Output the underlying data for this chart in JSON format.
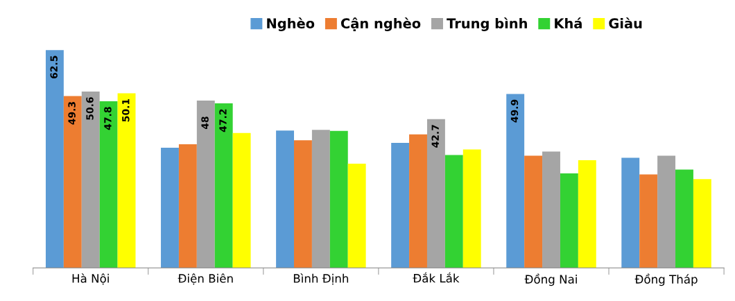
{
  "chart_data": {
    "type": "bar",
    "categories": [
      "Hà Nội",
      "Điện Biên",
      "Bình Định",
      "Đắk Lắk",
      "Đồng Nai",
      "Đồng Tháp"
    ],
    "series": [
      {
        "name": "Nghèo",
        "color": "#5b9bd5",
        "values": [
          62.5,
          34.5,
          39.4,
          35.9,
          49.9,
          31.6
        ],
        "value_labels": [
          "62.5",
          null,
          null,
          null,
          "49.9",
          null
        ]
      },
      {
        "name": "Cận nghèo",
        "color": "#ed7d31",
        "values": [
          49.3,
          35.5,
          36.6,
          38.3,
          32.2,
          26.8
        ],
        "value_labels": [
          "49.3",
          null,
          null,
          null,
          null,
          null
        ]
      },
      {
        "name": "Trung bình",
        "color": "#a5a5a5",
        "values": [
          50.6,
          48,
          39.6,
          42.7,
          33.4,
          32.2
        ],
        "value_labels": [
          "50.6",
          "48",
          null,
          "42.7",
          null,
          null
        ]
      },
      {
        "name": "Khá",
        "color": "#33d233",
        "values": [
          47.8,
          47.2,
          39.3,
          32.4,
          27.1,
          28.2
        ],
        "value_labels": [
          "47.8",
          "47.2",
          null,
          null,
          null,
          null
        ]
      },
      {
        "name": "Giàu",
        "color": "#ffff00",
        "values": [
          50.1,
          38.7,
          29.9,
          34.0,
          30.9,
          25.5
        ],
        "value_labels": [
          "50.1",
          null,
          null,
          null,
          null,
          null
        ]
      }
    ],
    "legend": "top right",
    "grid": false
  }
}
